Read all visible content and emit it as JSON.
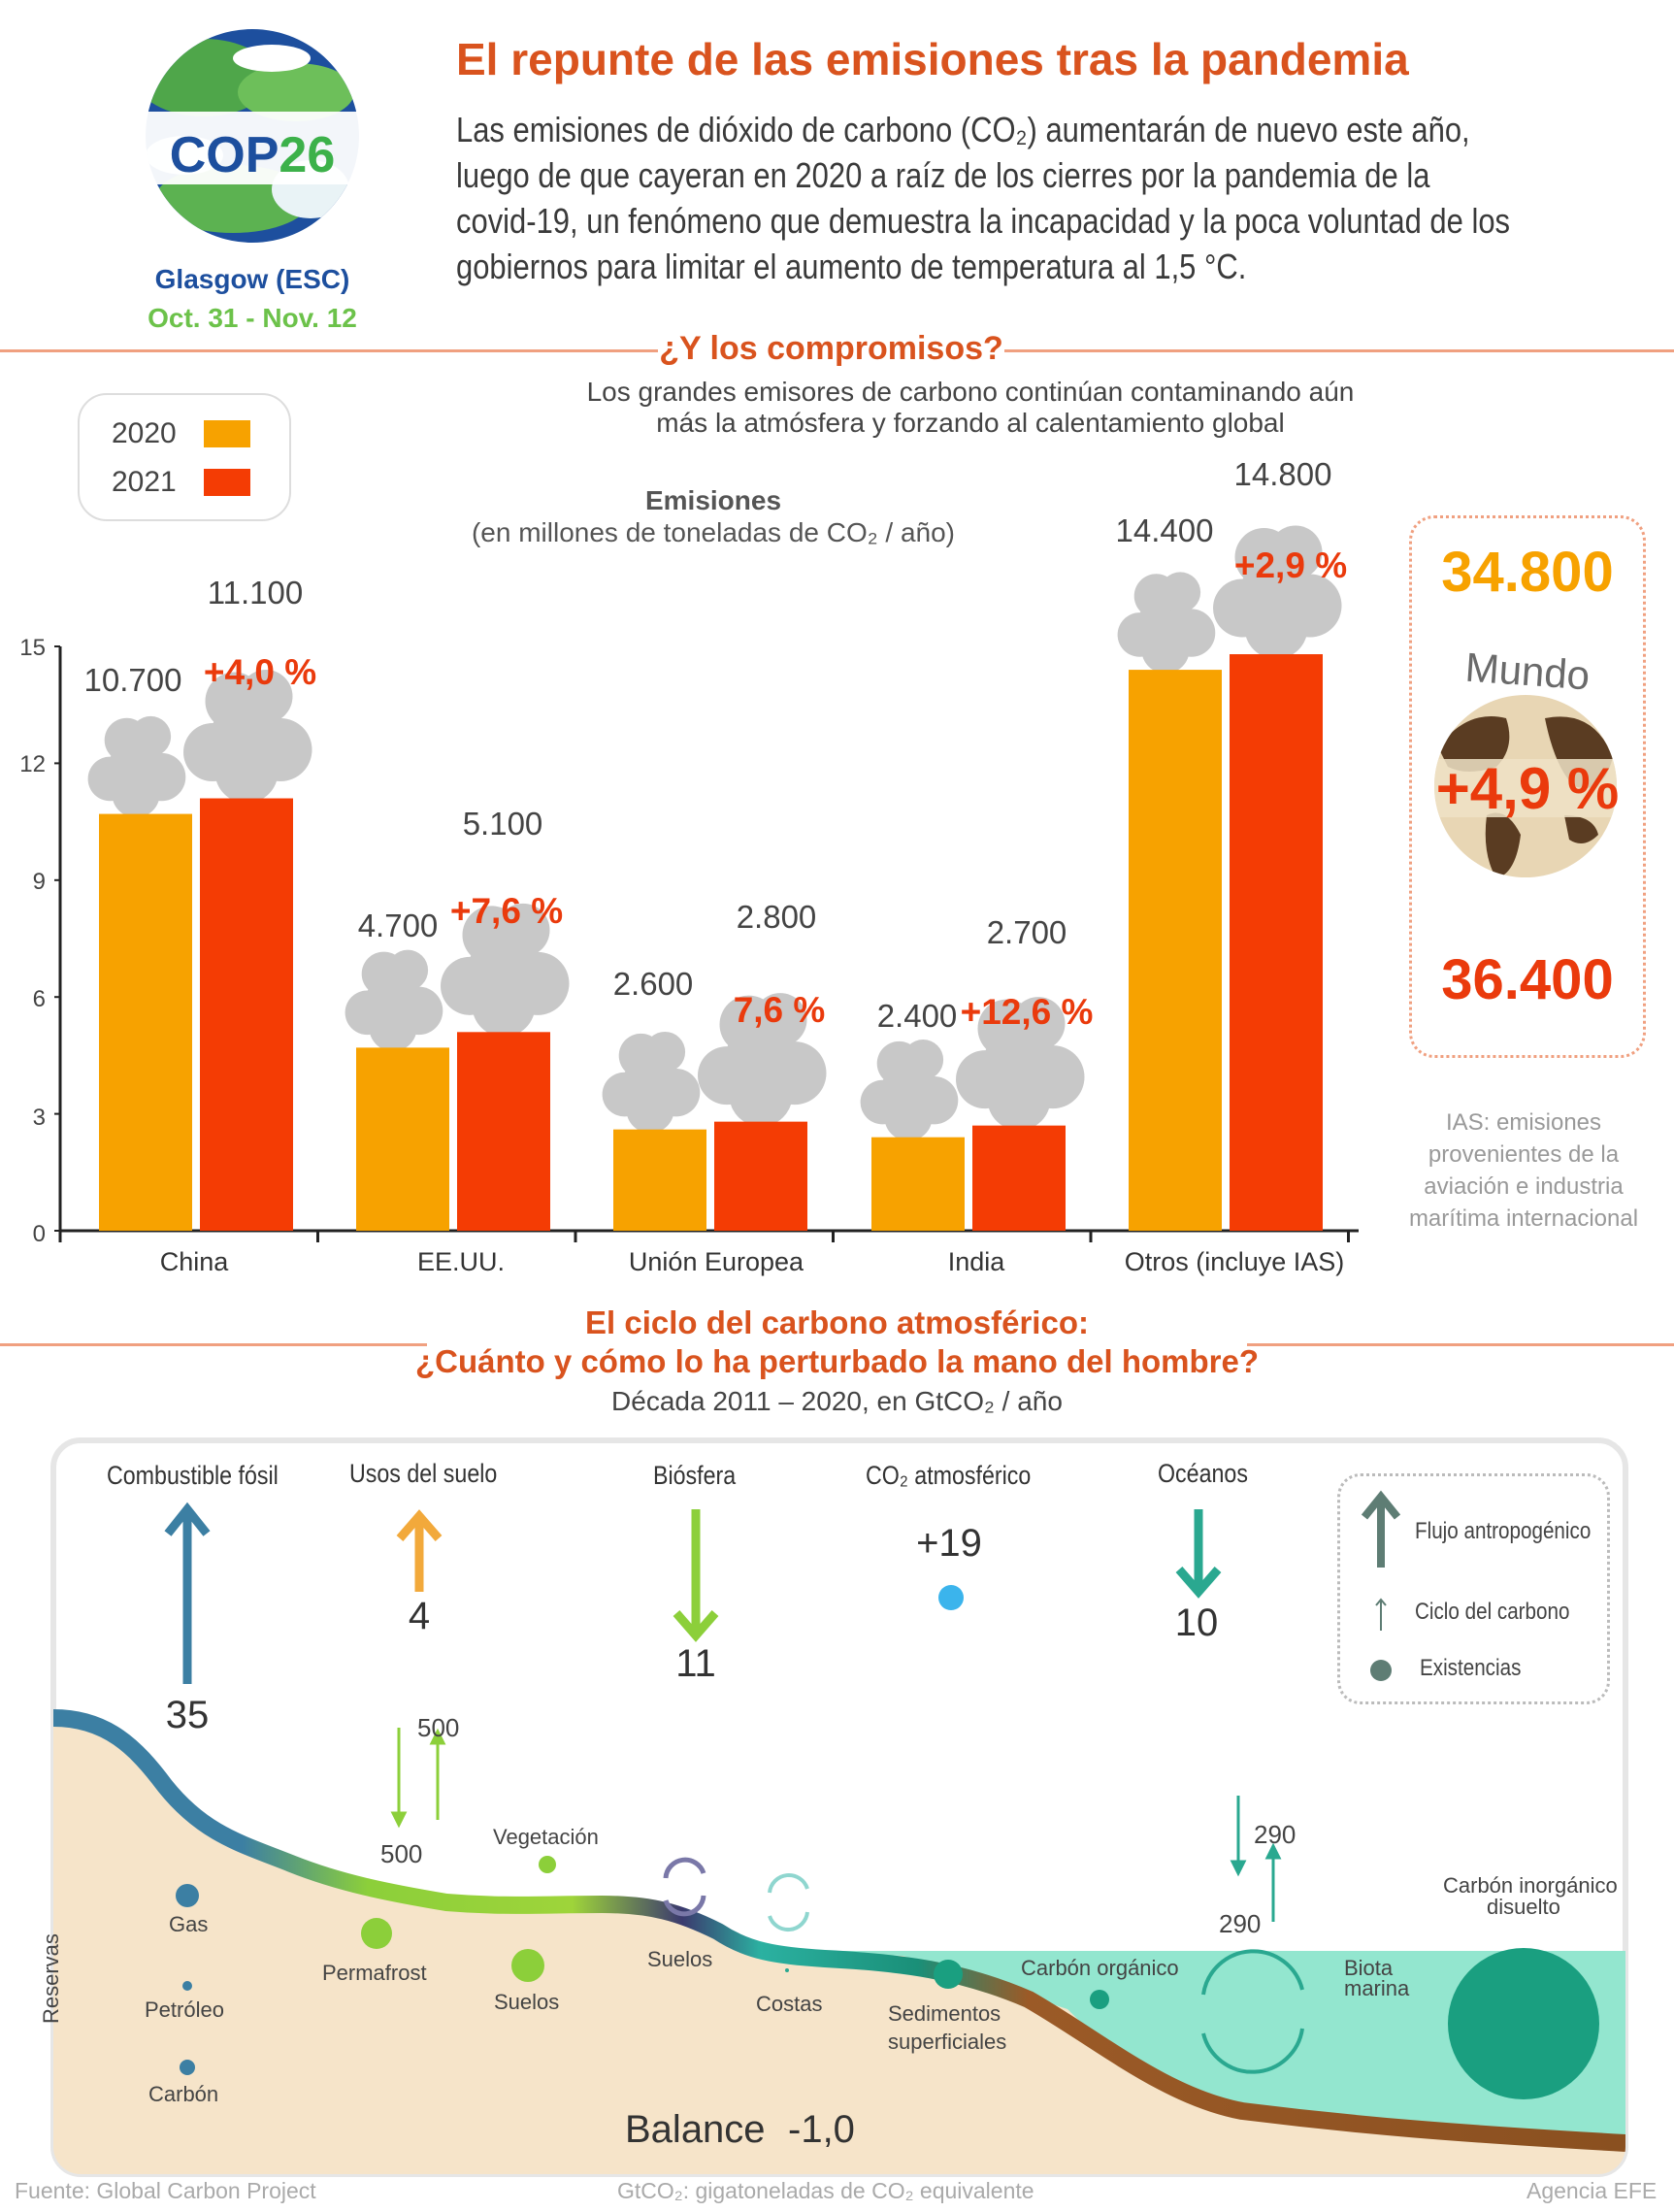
{
  "logo": {
    "text_cop": "COP",
    "text_num": "26",
    "city": "Glasgow (ESC)",
    "dates": "Oct. 31 - Nov. 12"
  },
  "header": {
    "title": "El repunte de las emisiones tras la pandemia",
    "intro_lines": [
      "Las emisiones de dióxido de carbono (CO₂) aumentarán de nuevo este año,",
      "luego de que cayeran en 2020 a raíz de los cierres por la pandemia de la",
      "covid-19, un fenómeno que demuestra la incapacidad y la poca voluntad de los",
      "gobiernos para limitar el aumento de temperatura al 1,5 °C."
    ]
  },
  "section1": {
    "title": "¿Y los compromisos?",
    "sub1": "Los grandes emisores de carbono continúan contaminando aún",
    "sub2": "más la atmósfera y forzando al calentamiento global",
    "chart_label": "Emisiones",
    "chart_unit": "(en millones de toneladas de CO₂ / año)",
    "legend": [
      {
        "label": "2020",
        "color": "#f7a200"
      },
      {
        "label": "2021",
        "color": "#f43c04"
      }
    ]
  },
  "chart_data": {
    "type": "bar",
    "categories": [
      "China",
      "EE.UU.",
      "Unión Europea",
      "India",
      "Otros (incluye IAS)"
    ],
    "series": [
      {
        "name": "2020",
        "values": [
          10700,
          4700,
          2600,
          2400,
          14400
        ],
        "labels": [
          "10.700",
          "4.700",
          "2.600",
          "2.400",
          "14.400"
        ]
      },
      {
        "name": "2021",
        "values": [
          11100,
          5100,
          2800,
          2700,
          14800
        ],
        "labels": [
          "11.100",
          "5.100",
          "2.800",
          "2.700",
          "14.800"
        ]
      }
    ],
    "changes": [
      "+4,0 %",
      "+7,6 %",
      "7,6 %",
      "+12,6 %",
      "+2,9 %"
    ],
    "yticks": [
      "0",
      "3",
      "6",
      "9",
      "12",
      "15"
    ],
    "ylim": [
      0,
      15000
    ]
  },
  "world": {
    "v2020": "34.800",
    "label": "Mundo",
    "change": "+4,9 %",
    "v2021": "36.400"
  },
  "ias_note": [
    "IAS: emisiones",
    "provenientes de la",
    "aviación e industria",
    "marítima internacional"
  ],
  "section2": {
    "title1": "El ciclo del carbono atmosférico:",
    "title2": "¿Cuánto y cómo lo ha perturbado la mano del hombre?",
    "sub": "Década 2011 – 2020, en GtCO₂ / año"
  },
  "flows": {
    "fossil": {
      "label": "Combustible fósil",
      "value": "35",
      "color": "#3c7fa3"
    },
    "land": {
      "label": "Usos del suelo",
      "value": "4",
      "color": "#f2a93b"
    },
    "bio": {
      "label": "Biósfera",
      "value": "11",
      "color": "#8ccf3a"
    },
    "atmo": {
      "label": "CO₂ atmosférico",
      "value": "+19",
      "color": "#3bb4ec"
    },
    "ocean": {
      "label": "Océanos",
      "value": "10",
      "color": "#2aa890"
    }
  },
  "cycle_legend": {
    "anthro": "Flujo antropogénico",
    "cycle": "Ciclo del carbono",
    "stocks": "Existencias"
  },
  "cycle": {
    "land_up": "500",
    "land_down": "500",
    "ocean_up": "290",
    "ocean_down": "290",
    "vegetacion": "Vegetación",
    "gas": "Gas",
    "petroleo": "Petróleo",
    "carbon": "Carbón",
    "reservas": "Reservas",
    "permafrost": "Permafrost",
    "suelos1": "Suelos",
    "suelos2": "Suelos",
    "costas": "Costas",
    "sedimentos1": "Sedimentos",
    "sedimentos2": "superficiales",
    "organico": "Carbón orgánico",
    "biota1": "Biota",
    "biota2": "marina",
    "inorg1": "Carbón inorgánico",
    "inorg2": "disuelto",
    "balance": "Balance",
    "balance_value": "-1,0"
  },
  "footer": {
    "source": "Fuente: Global Carbon Project",
    "note": "GtCO₂: gigatoneladas de CO₂ equivalente",
    "agency": "Agencia EFE"
  }
}
